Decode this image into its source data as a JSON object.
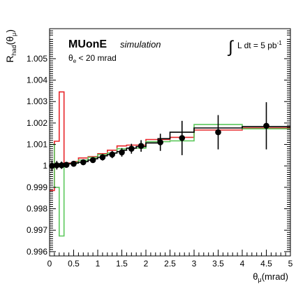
{
  "chart_data": {
    "type": "line",
    "title": "",
    "ylabel": {
      "base": "R",
      "sub1": "had",
      "mid": "(θ",
      "sub2": "μ",
      "end": ")"
    },
    "xlabel": {
      "base": "θ",
      "sub": "μ",
      "end": "(mrad)"
    },
    "xlim": [
      0,
      5
    ],
    "ylim": [
      0.9958,
      1.0064
    ],
    "xticks": [
      {
        "v": 0,
        "label": "0"
      },
      {
        "v": 0.5,
        "label": "0.5"
      },
      {
        "v": 1,
        "label": "1"
      },
      {
        "v": 1.5,
        "label": "1.5"
      },
      {
        "v": 2,
        "label": "2"
      },
      {
        "v": 2.5,
        "label": "2.5"
      },
      {
        "v": 3,
        "label": "3"
      },
      {
        "v": 3.5,
        "label": "3.5"
      },
      {
        "v": 4,
        "label": "4"
      },
      {
        "v": 4.5,
        "label": "4.5"
      },
      {
        "v": 5,
        "label": "5"
      }
    ],
    "yticks": [
      {
        "v": 0.996,
        "label": "0.996"
      },
      {
        "v": 0.997,
        "label": "0.997"
      },
      {
        "v": 0.998,
        "label": "0.998"
      },
      {
        "v": 0.999,
        "label": "0.999"
      },
      {
        "v": 1.0,
        "label": "1"
      },
      {
        "v": 1.001,
        "label": "1.001"
      },
      {
        "v": 1.002,
        "label": "1.002"
      },
      {
        "v": 1.003,
        "label": "1.003"
      },
      {
        "v": 1.004,
        "label": "1.004"
      },
      {
        "v": 1.005,
        "label": "1.005"
      }
    ],
    "annotations": {
      "experiment": "MUonE",
      "tag": "simulation",
      "cut": {
        "base": "θ",
        "sub": "e",
        "rest": " < 20 mrad"
      },
      "lumi": {
        "integral": "∫",
        "text": "L dt = 5 pb",
        "sup": "-1"
      }
    },
    "series": [
      {
        "style": "histogram",
        "color": "#000000",
        "edges": [
          0,
          0.05,
          0.1,
          0.15,
          0.2,
          0.25,
          0.3,
          0.4,
          0.5,
          0.6,
          0.7,
          0.8,
          0.9,
          1.0,
          1.1,
          1.2,
          1.3,
          1.4,
          1.5,
          1.6,
          1.8,
          2.0,
          2.25,
          2.5,
          3.0,
          4.0,
          5.0
        ],
        "values": [
          1.0,
          1.0,
          1.0,
          1.0,
          1.00003,
          1.00005,
          1.00008,
          1.0001,
          1.00013,
          1.00017,
          1.0002,
          1.00027,
          1.00033,
          1.0004,
          1.00047,
          1.00053,
          1.0006,
          1.00067,
          1.00073,
          1.00083,
          1.0009,
          1.00107,
          1.00127,
          1.00157,
          1.00177,
          1.00183
        ]
      },
      {
        "style": "histogram",
        "color": "#e8262a",
        "edges": [
          0,
          0.1,
          0.2,
          0.3,
          0.4,
          0.5,
          0.6,
          0.8,
          1.0,
          1.2,
          1.4,
          1.6,
          2.0,
          2.5,
          3.0,
          4.0,
          5.0
        ],
        "values": [
          0.99885,
          1.00115,
          1.00345,
          1.0001,
          1.00013,
          1.0002,
          1.00037,
          1.00043,
          1.00057,
          1.00073,
          1.00093,
          1.00097,
          1.00123,
          1.00133,
          1.00167,
          1.00177
        ]
      },
      {
        "style": "histogram",
        "color": "#5cc85c",
        "edges": [
          0,
          0.1,
          0.2,
          0.3,
          0.4,
          0.5,
          0.6,
          0.8,
          1.0,
          1.2,
          1.4,
          1.6,
          2.0,
          2.5,
          3.0,
          4.0,
          5.0
        ],
        "values": [
          1.001,
          0.999,
          0.99673,
          1.0001,
          1.0001,
          1.00017,
          1.00027,
          1.0004,
          1.00053,
          1.0006,
          1.0008,
          1.00083,
          1.00113,
          1.00117,
          1.00193,
          1.00173
        ]
      },
      {
        "style": "points",
        "color": "#000000",
        "x": [
          0.05,
          0.15,
          0.25,
          0.35,
          0.5,
          0.7,
          0.9,
          1.1,
          1.3,
          1.5,
          1.7,
          1.9,
          2.3,
          2.75,
          3.5,
          4.5
        ],
        "y": [
          1.0,
          1.00003,
          1.00003,
          1.00005,
          1.0001,
          1.00017,
          1.00027,
          1.0004,
          1.00053,
          1.00063,
          1.0008,
          1.00093,
          1.0011,
          1.0013,
          1.00157,
          1.00187
        ],
        "err": [
          0.00025,
          0.0002,
          0.00017,
          0.00013,
          0.0001,
          0.0001,
          0.00013,
          0.00015,
          0.00017,
          0.0002,
          0.00023,
          0.00027,
          0.0004,
          0.0008,
          0.0008,
          0.0011
        ]
      }
    ]
  }
}
